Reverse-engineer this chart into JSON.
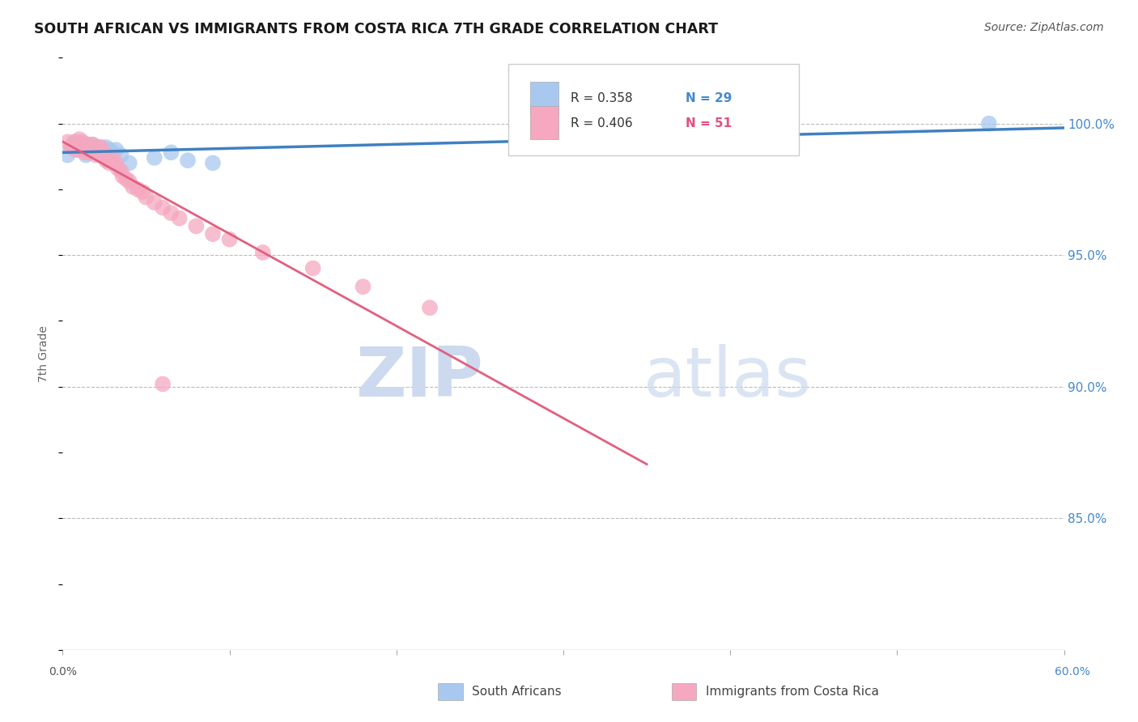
{
  "title": "SOUTH AFRICAN VS IMMIGRANTS FROM COSTA RICA 7TH GRADE CORRELATION CHART",
  "source": "Source: ZipAtlas.com",
  "ylabel": "7th Grade",
  "ylabel_right_ticks": [
    "100.0%",
    "95.0%",
    "90.0%",
    "85.0%"
  ],
  "ylabel_right_vals": [
    1.0,
    0.95,
    0.9,
    0.85
  ],
  "xmin": 0.0,
  "xmax": 0.6,
  "ymin": 0.8,
  "ymax": 1.025,
  "legend_blue_r": "R = 0.358",
  "legend_blue_n": "N = 29",
  "legend_pink_r": "R = 0.406",
  "legend_pink_n": "N = 51",
  "legend_label_blue": "South Africans",
  "legend_label_pink": "Immigrants from Costa Rica",
  "blue_color": "#a8c8f0",
  "pink_color": "#f5a8c0",
  "trendline_blue_color": "#4080c0",
  "trendline_pink_color": "#e06080",
  "blue_scatter_x": [
    0.003,
    0.006,
    0.008,
    0.01,
    0.012,
    0.013,
    0.014,
    0.015,
    0.016,
    0.017,
    0.018,
    0.019,
    0.02,
    0.021,
    0.022,
    0.024,
    0.025,
    0.026,
    0.028,
    0.03,
    0.032,
    0.035,
    0.04,
    0.055,
    0.065,
    0.075,
    0.09,
    0.555,
    0.32
  ],
  "blue_scatter_y": [
    0.988,
    0.991,
    0.993,
    0.99,
    0.992,
    0.99,
    0.988,
    0.991,
    0.989,
    0.99,
    0.992,
    0.991,
    0.99,
    0.989,
    0.991,
    0.99,
    0.988,
    0.991,
    0.99,
    0.989,
    0.99,
    0.988,
    0.985,
    0.987,
    0.989,
    0.986,
    0.985,
    1.0,
    0.993
  ],
  "pink_scatter_x": [
    0.003,
    0.005,
    0.006,
    0.007,
    0.008,
    0.009,
    0.01,
    0.011,
    0.012,
    0.012,
    0.013,
    0.013,
    0.014,
    0.015,
    0.015,
    0.016,
    0.017,
    0.018,
    0.019,
    0.02,
    0.021,
    0.022,
    0.023,
    0.024,
    0.025,
    0.026,
    0.027,
    0.028,
    0.03,
    0.032,
    0.033,
    0.035,
    0.036,
    0.038,
    0.04,
    0.042,
    0.045,
    0.048,
    0.05,
    0.055,
    0.06,
    0.065,
    0.07,
    0.08,
    0.09,
    0.1,
    0.12,
    0.15,
    0.18,
    0.22,
    0.06
  ],
  "pink_scatter_y": [
    0.993,
    0.991,
    0.992,
    0.993,
    0.99,
    0.991,
    0.994,
    0.992,
    0.993,
    0.99,
    0.992,
    0.989,
    0.991,
    0.992,
    0.989,
    0.991,
    0.99,
    0.992,
    0.99,
    0.988,
    0.991,
    0.989,
    0.991,
    0.989,
    0.988,
    0.986,
    0.987,
    0.985,
    0.987,
    0.985,
    0.983,
    0.982,
    0.98,
    0.979,
    0.978,
    0.976,
    0.975,
    0.974,
    0.972,
    0.97,
    0.968,
    0.966,
    0.964,
    0.961,
    0.958,
    0.956,
    0.951,
    0.945,
    0.938,
    0.93,
    0.901
  ],
  "watermark_zip": "ZIP",
  "watermark_atlas": "atlas",
  "watermark_color": "#ccd9ee",
  "background_color": "#ffffff",
  "grid_color": "#bbbbbb"
}
